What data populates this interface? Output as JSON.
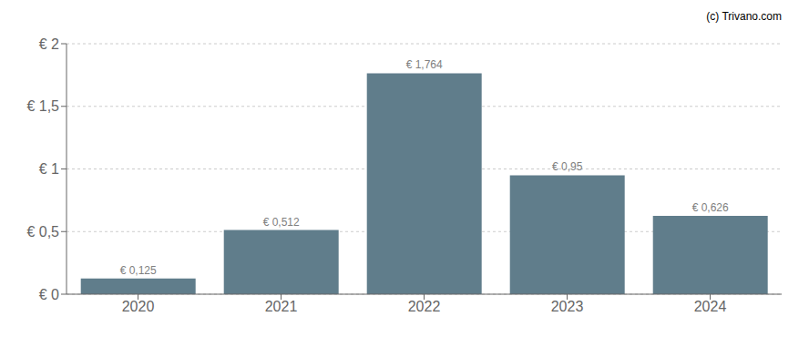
{
  "chart_data": {
    "type": "bar",
    "categories": [
      "2020",
      "2021",
      "2022",
      "2023",
      "2024"
    ],
    "values": [
      0.125,
      0.512,
      1.764,
      0.95,
      0.626
    ],
    "value_labels": [
      "€ 0,125",
      "€ 0,512",
      "€ 1,764",
      "€ 0,95",
      "€ 0,626"
    ],
    "data_labels": true,
    "color": "#607d8b",
    "ylim": [
      0,
      2.0
    ],
    "yticks": [
      {
        "value": 0,
        "label": "€ 0"
      },
      {
        "value": 0.5,
        "label": "€ 0,5"
      },
      {
        "value": 1.0,
        "label": "€ 1"
      },
      {
        "value": 1.5,
        "label": "€ 1,5"
      },
      {
        "value": 2.0,
        "label": "€ 2"
      }
    ],
    "grid": true,
    "annotation": "(c) Trivano.com"
  }
}
